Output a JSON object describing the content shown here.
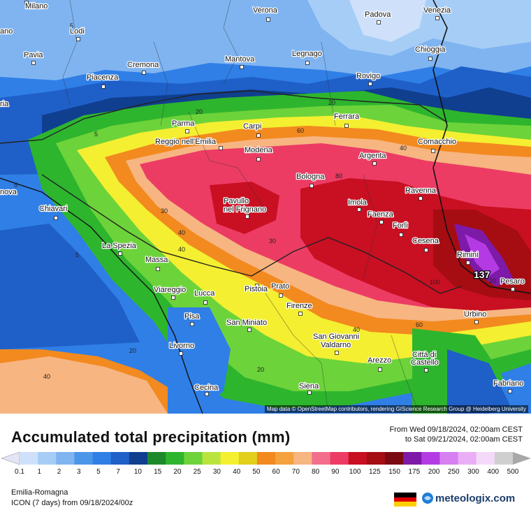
{
  "map": {
    "attribution": "Map data © OpenStreetMap contributors, rendering GIScience Research Group @ Heidelberg University",
    "max_value": "137",
    "contour_labels": [
      "5",
      "5",
      "20",
      "20",
      "20",
      "30",
      "40",
      "60",
      "80",
      "100",
      "60",
      "40",
      "40",
      "20",
      "20",
      "5",
      "5",
      "30",
      "40",
      "40"
    ],
    "cities": [
      "Milano",
      "Verona",
      "Padova",
      "Venezia",
      "Lodi",
      "Legnago",
      "Chioggia",
      "Pavia",
      "Cremona",
      "Mantova",
      "Rovigo",
      "Piacenza",
      "Parma",
      "Carpi",
      "Ferrara",
      "Reggio nell'Emilia",
      "Modena",
      "Comacchio",
      "Argenta",
      "Bologna",
      "Ravenna",
      "Pavullo",
      "nel Frignano",
      "Imola",
      "Faenza",
      "Forlì",
      "Chiavari",
      "Cesena",
      "La Spezia",
      "Massa",
      "Rimini",
      "Pesaro",
      "Viareggio",
      "Lucca",
      "Pistoia",
      "Prato",
      "Firenze",
      "Pisa",
      "Urbino",
      "San Miniato",
      "San Giovanni",
      "Valdarno",
      "Livorno",
      "Arezzo",
      "Città di",
      "Castello",
      "Cecina",
      "Siena",
      "Fabriano",
      "ano",
      "ria",
      "nova"
    ]
  },
  "legend": {
    "title": "Accumulated total precipitation (mm)",
    "period_from": "From Wed 09/18/2024, 02:00am CEST",
    "period_to": "to Sat 09/21/2024, 02:00am CEST",
    "ticks": [
      "0.1",
      "1",
      "2",
      "3",
      "5",
      "7",
      "10",
      "15",
      "20",
      "25",
      "30",
      "40",
      "50",
      "60",
      "70",
      "80",
      "90",
      "100",
      "125",
      "150",
      "175",
      "200",
      "250",
      "300",
      "400",
      "500"
    ],
    "colors": [
      "#e3e4f4",
      "#cfe1fa",
      "#a6cdf6",
      "#7fb4f1",
      "#4c96ea",
      "#2f7fe6",
      "#1f5fc8",
      "#103f8f",
      "#1d8a2a",
      "#2eb52e",
      "#6dd33a",
      "#b9e43e",
      "#f4ef30",
      "#e1cf1c",
      "#f28a1f",
      "#f4a23d",
      "#f7b581",
      "#f36d8c",
      "#ec3c64",
      "#c90f22",
      "#a50d13",
      "#7a0a12",
      "#7d1aa8",
      "#b43be3",
      "#d680f2",
      "#eaaef6",
      "#f4d9f9",
      "#cfcfcf",
      "#a8a8a8"
    ]
  },
  "footer": {
    "region": "Emilia-Romagna",
    "model": "ICON (7 days)  from  09/18/2024/00z",
    "brand": "meteologix.com"
  }
}
